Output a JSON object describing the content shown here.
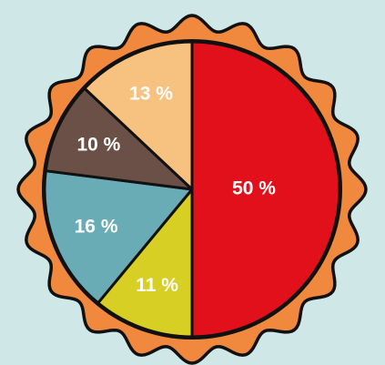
{
  "chart_data": {
    "type": "pie",
    "categories": [
      null,
      null,
      null,
      null,
      null
    ],
    "values": [
      50,
      11,
      16,
      10,
      13
    ],
    "value_labels": [
      "50 %",
      "11 %",
      "16 %",
      "10 %",
      "13 %"
    ],
    "colors": [
      "#e2101a",
      "#d8cf25",
      "#69acb5",
      "#6b5048",
      "#f7c27f"
    ]
  }
}
